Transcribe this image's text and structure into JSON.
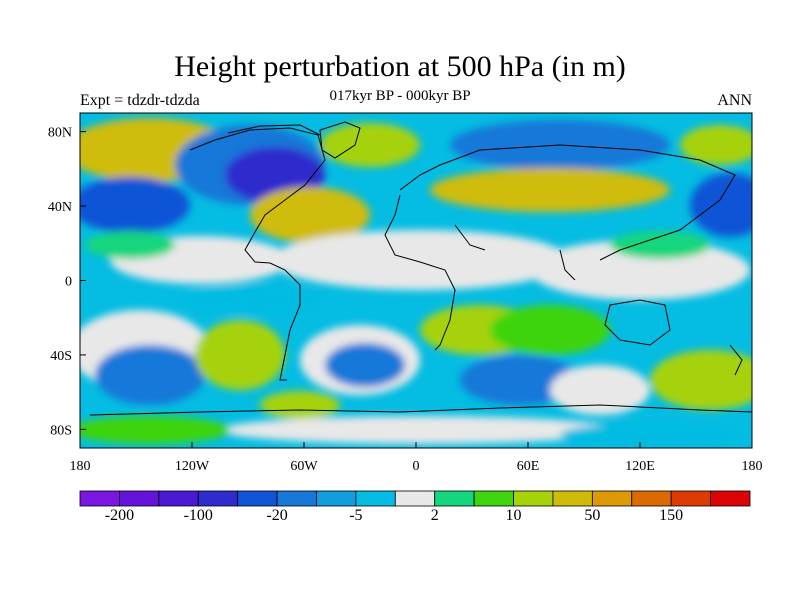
{
  "header": {
    "title": "Height perturbation at 500 hPa (in m)",
    "subtitle": "017kyr BP - 000kyr BP",
    "left_label": "Expt = tdzdr-tdzda",
    "right_label": "ANN"
  },
  "map": {
    "projection": "cylindrical-equidistant",
    "lon_range": [
      -180,
      180
    ],
    "lat_range": [
      -90,
      90
    ],
    "x_ticks": [
      {
        "lon": -180,
        "label": "180"
      },
      {
        "lon": -120,
        "label": "120W"
      },
      {
        "lon": -60,
        "label": "60W"
      },
      {
        "lon": 0,
        "label": "0"
      },
      {
        "lon": 60,
        "label": "60E"
      },
      {
        "lon": 120,
        "label": "120E"
      },
      {
        "lon": 180,
        "label": "180"
      }
    ],
    "y_ticks": [
      {
        "lat": 80,
        "label": "80N"
      },
      {
        "lat": 40,
        "label": "40N"
      },
      {
        "lat": 0,
        "label": "0"
      },
      {
        "lat": -40,
        "label": "40S"
      },
      {
        "lat": -80,
        "label": "80S"
      }
    ]
  },
  "colorbar": {
    "colors": [
      "#7b16e0",
      "#6414d8",
      "#4a1ad2",
      "#2e2ccc",
      "#0f55d6",
      "#1878d8",
      "#129ede",
      "#05bce2",
      "#e8e8e8",
      "#14d67e",
      "#3ed40e",
      "#a6d20a",
      "#cfbc08",
      "#dd9a06",
      "#dc6a04",
      "#dc3c04",
      "#dc0404"
    ],
    "labels": [
      {
        "after_box": 1,
        "text": "-200"
      },
      {
        "after_box": 3,
        "text": "-100"
      },
      {
        "after_box": 5,
        "text": "-20"
      },
      {
        "after_box": 7,
        "text": "-5"
      },
      {
        "after_box": 9,
        "text": "2"
      },
      {
        "after_box": 11,
        "text": "10"
      },
      {
        "after_box": 13,
        "text": "50"
      },
      {
        "after_box": 15,
        "text": "150"
      }
    ]
  }
}
